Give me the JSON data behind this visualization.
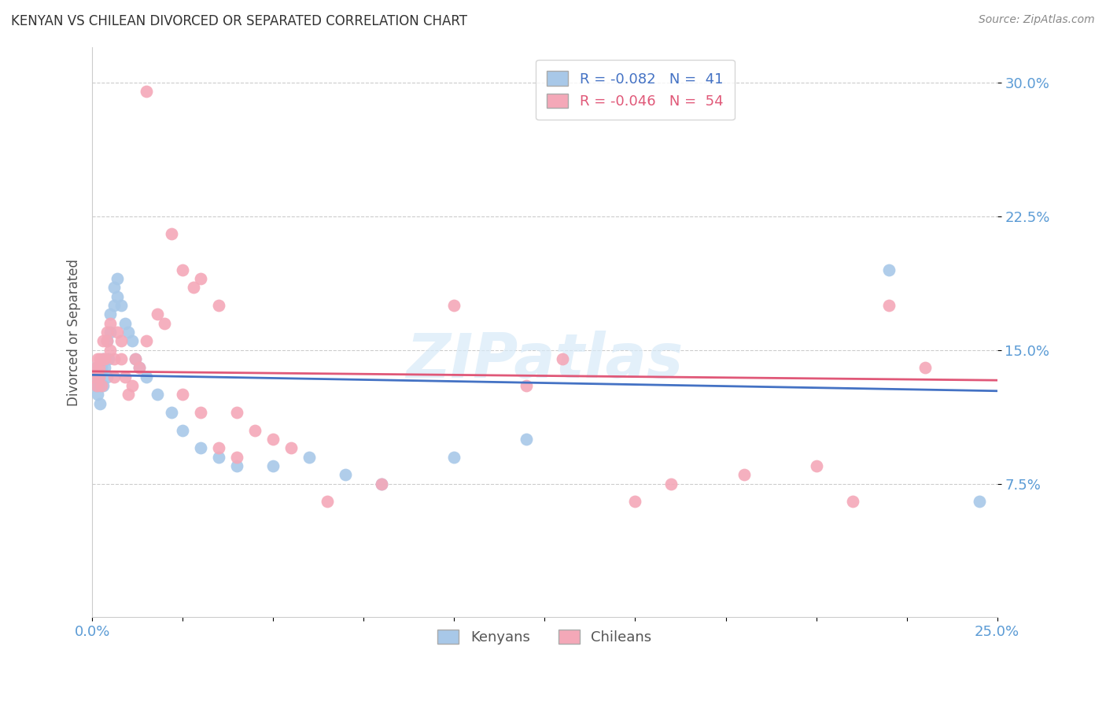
{
  "title": "KENYAN VS CHILEAN DIVORCED OR SEPARATED CORRELATION CHART",
  "source": "Source: ZipAtlas.com",
  "ylabel": "Divorced or Separated",
  "watermark": "ZIPatlas",
  "xlim": [
    0.0,
    0.25
  ],
  "ylim": [
    0.0,
    0.32
  ],
  "kenyan_color": "#a8c8e8",
  "chilean_color": "#f4a8b8",
  "line_kenyan_color": "#4472c4",
  "line_chilean_color": "#e05878",
  "background_color": "#ffffff",
  "grid_color": "#cccccc",
  "title_color": "#333333",
  "source_color": "#888888",
  "tick_color": "#5b9bd5",
  "ylabel_color": "#555555",
  "legend_text_blue": "R = -0.082   N =  41",
  "legend_text_pink": "R = -0.046   N =  54",
  "legend_label_kenyan": "Kenyans",
  "legend_label_chilean": "Chileans",
  "kenyan_x": [
    0.0005,
    0.001,
    0.0012,
    0.0015,
    0.0018,
    0.002,
    0.0022,
    0.0025,
    0.003,
    0.003,
    0.0035,
    0.004,
    0.004,
    0.0045,
    0.005,
    0.005,
    0.006,
    0.006,
    0.007,
    0.007,
    0.008,
    0.009,
    0.01,
    0.011,
    0.012,
    0.013,
    0.015,
    0.018,
    0.022,
    0.025,
    0.03,
    0.035,
    0.04,
    0.05,
    0.06,
    0.07,
    0.08,
    0.1,
    0.12,
    0.22,
    0.245
  ],
  "kenyan_y": [
    0.135,
    0.13,
    0.14,
    0.125,
    0.13,
    0.135,
    0.12,
    0.14,
    0.13,
    0.145,
    0.14,
    0.135,
    0.155,
    0.145,
    0.16,
    0.17,
    0.175,
    0.185,
    0.19,
    0.18,
    0.175,
    0.165,
    0.16,
    0.155,
    0.145,
    0.14,
    0.135,
    0.125,
    0.115,
    0.105,
    0.095,
    0.09,
    0.085,
    0.085,
    0.09,
    0.08,
    0.075,
    0.09,
    0.1,
    0.195,
    0.065
  ],
  "chilean_x": [
    0.0005,
    0.001,
    0.0012,
    0.0015,
    0.002,
    0.002,
    0.0022,
    0.0025,
    0.003,
    0.003,
    0.0035,
    0.004,
    0.004,
    0.005,
    0.005,
    0.006,
    0.006,
    0.007,
    0.008,
    0.008,
    0.009,
    0.01,
    0.011,
    0.012,
    0.013,
    0.015,
    0.015,
    0.018,
    0.02,
    0.022,
    0.025,
    0.028,
    0.03,
    0.035,
    0.04,
    0.045,
    0.05,
    0.055,
    0.065,
    0.08,
    0.1,
    0.12,
    0.13,
    0.15,
    0.16,
    0.18,
    0.2,
    0.21,
    0.22,
    0.23,
    0.025,
    0.03,
    0.035,
    0.04
  ],
  "chilean_y": [
    0.135,
    0.14,
    0.13,
    0.145,
    0.14,
    0.135,
    0.145,
    0.13,
    0.145,
    0.155,
    0.145,
    0.16,
    0.155,
    0.15,
    0.165,
    0.145,
    0.135,
    0.16,
    0.155,
    0.145,
    0.135,
    0.125,
    0.13,
    0.145,
    0.14,
    0.155,
    0.295,
    0.17,
    0.165,
    0.215,
    0.195,
    0.185,
    0.19,
    0.175,
    0.115,
    0.105,
    0.1,
    0.095,
    0.065,
    0.075,
    0.175,
    0.13,
    0.145,
    0.065,
    0.075,
    0.08,
    0.085,
    0.065,
    0.175,
    0.14,
    0.125,
    0.115,
    0.095,
    0.09
  ],
  "line_kenyan_y0": 0.136,
  "line_kenyan_y1": 0.127,
  "line_chilean_y0": 0.138,
  "line_chilean_y1": 0.133
}
